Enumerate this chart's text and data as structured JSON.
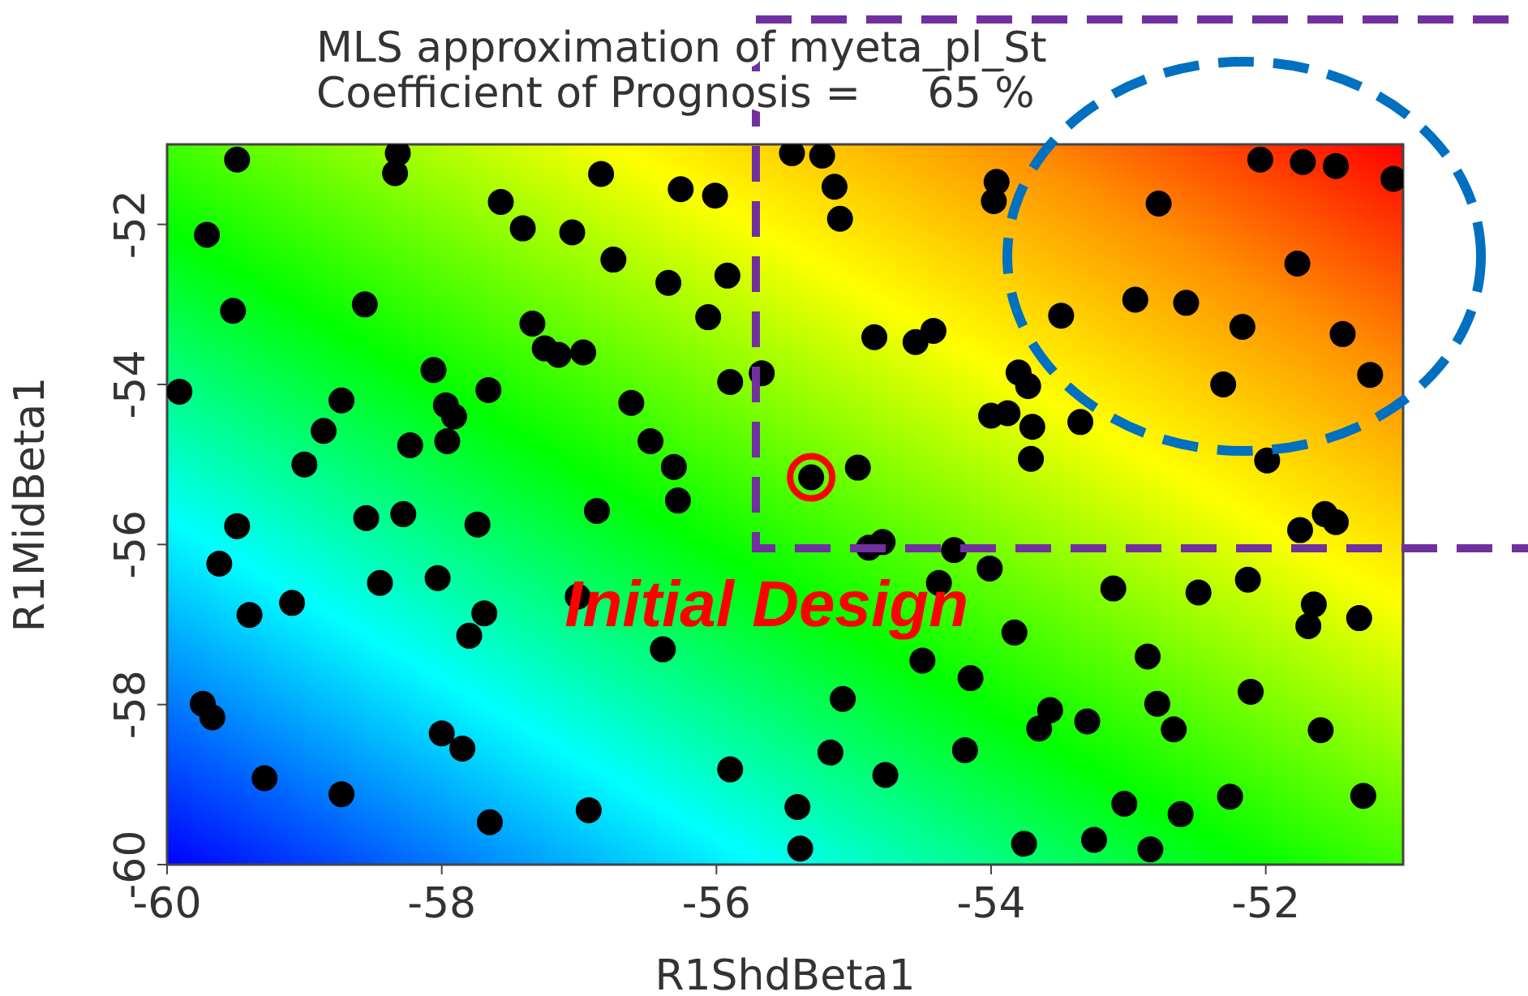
{
  "chart_data": {
    "type": "scatter",
    "title": "MLS approximation of myeta_pl_St",
    "subtitle": "Coefficient of Prognosis =     65 %",
    "xlabel": "R1ShdBeta1",
    "ylabel": "R1MidBeta1",
    "xlim": [
      -60,
      -51
    ],
    "xticks": [
      -60,
      -58,
      -56,
      -54,
      -52
    ],
    "ylim": [
      -60,
      -51
    ],
    "yticks": [
      -60,
      -58,
      -56,
      -54,
      -52
    ],
    "marker": "circle",
    "annotations": [
      {
        "text": "Initial Design",
        "x": -55.31,
        "y": -55.16
      }
    ],
    "series": [
      {
        "color": "#000000",
        "x": [
          -59.49,
          -58.32,
          -58.34,
          -56.84,
          -56.26,
          -56.01,
          -59.71,
          -57.57,
          -57.41,
          -57.05,
          -56.75,
          -56.35,
          -55.92,
          -56.06,
          -59.52,
          -58.56,
          -57.34,
          -57.25,
          -57.15,
          -56.97,
          -55.9,
          -55.67,
          -59.91,
          -58.06,
          -57.66,
          -58.73,
          -57.97,
          -57.91,
          -56.62,
          -58.86,
          -58.23,
          -57.96,
          -56.48,
          -59.0,
          -56.31,
          -56.28,
          -59.49,
          -58.55,
          -58.28,
          -57.74,
          -56.87,
          -59.62,
          -58.45,
          -58.03,
          -59.4,
          -59.09,
          -57.69,
          -57.8,
          -57.01,
          -56.39,
          -59.74,
          -59.67,
          -58.0,
          -57.85,
          -55.9,
          -59.29,
          -58.73,
          -57.65,
          -56.93,
          -55.45,
          -55.23,
          -55.14,
          -55.1,
          -53.96,
          -53.98,
          -52.04,
          -51.73,
          -51.49,
          -51.07,
          -52.78,
          -51.77,
          -53.49,
          -52.95,
          -52.58,
          -52.17,
          -51.44,
          -51.24,
          -52.31,
          -54.85,
          -54.55,
          -54.42,
          -53.8,
          -53.73,
          -54.0,
          -53.88,
          -53.7,
          -53.35,
          -53.71,
          -51.99,
          -55.31,
          -54.97,
          -51.57,
          -51.49,
          -51.75,
          -54.89,
          -54.79,
          -54.27,
          -54.01,
          -54.38,
          -53.11,
          -52.49,
          -52.13,
          -51.65,
          -51.69,
          -51.32,
          -53.83,
          -54.5,
          -54.15,
          -52.86,
          -52.11,
          -55.08,
          -52.79,
          -53.57,
          -53.65,
          -53.3,
          -52.67,
          -51.6,
          -55.17,
          -54.19,
          -54.77,
          -53.03,
          -52.62,
          -52.26,
          -51.29,
          -55.41,
          -55.39,
          -53.76,
          -53.25,
          -52.84
        ],
        "values": [
          -51.19,
          -51.11,
          -51.36,
          -51.37,
          -51.56,
          -51.64,
          -52.13,
          -51.72,
          -52.05,
          -52.1,
          -52.44,
          -52.73,
          -52.64,
          -53.16,
          -53.08,
          -53.0,
          -53.24,
          -53.55,
          -53.63,
          -53.6,
          -53.97,
          -53.86,
          -54.09,
          -53.82,
          -54.07,
          -54.2,
          -54.26,
          -54.4,
          -54.23,
          -54.58,
          -54.76,
          -54.71,
          -54.71,
          -55.0,
          -55.03,
          -55.45,
          -55.77,
          -55.67,
          -55.62,
          -55.75,
          -55.58,
          -56.24,
          -56.48,
          -56.42,
          -56.88,
          -56.73,
          -56.86,
          -57.14,
          -56.65,
          -57.31,
          -57.99,
          -58.16,
          -58.36,
          -58.55,
          -58.81,
          -58.92,
          -59.12,
          -59.47,
          -59.32,
          -51.11,
          -51.14,
          -51.53,
          -51.93,
          -51.47,
          -51.71,
          -51.19,
          -51.22,
          -51.27,
          -51.43,
          -51.74,
          -52.49,
          -53.14,
          -52.94,
          -52.98,
          -53.28,
          -53.37,
          -53.88,
          -54.0,
          -53.41,
          -53.47,
          -53.33,
          -53.85,
          -54.02,
          -54.39,
          -54.36,
          -54.53,
          -54.47,
          -54.93,
          -54.95,
          -55.16,
          -55.04,
          -55.62,
          -55.72,
          -55.82,
          -56.04,
          -55.97,
          -56.07,
          -56.3,
          -56.48,
          -56.55,
          -56.6,
          -56.44,
          -56.75,
          -57.02,
          -56.92,
          -57.1,
          -57.45,
          -57.67,
          -57.4,
          -57.84,
          -57.93,
          -57.99,
          -58.07,
          -58.3,
          -58.21,
          -58.31,
          -58.32,
          -58.6,
          -58.57,
          -58.88,
          -59.24,
          -59.37,
          -59.15,
          -59.14,
          -59.28,
          -59.8,
          -59.74,
          -59.69,
          -59.81
        ]
      }
    ]
  }
}
